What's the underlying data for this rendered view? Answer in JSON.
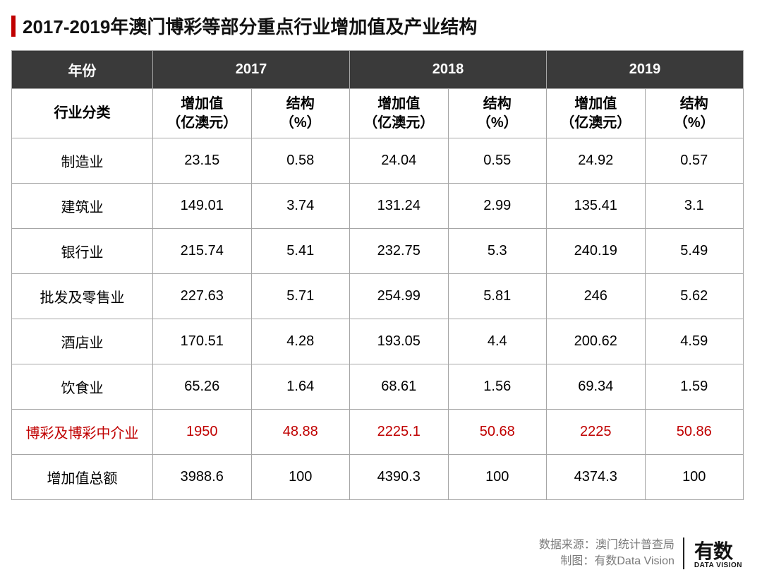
{
  "title": "2017-2019年澳门博彩等部分重点行业增加值及产业结构",
  "accent_color": "#c00000",
  "header_bg": "#3a3a3a",
  "header_fg": "#ffffff",
  "border_color": "#a6a6a6",
  "highlight_color": "#c00000",
  "table": {
    "year_label": "年份",
    "category_label": "行业分类",
    "years": [
      "2017",
      "2018",
      "2019"
    ],
    "subheaders": {
      "value": "增加值\n（亿澳元）",
      "pct": "结构\n（%）"
    },
    "rows": [
      {
        "label": "制造业",
        "cells": [
          "23.15",
          "0.58",
          "24.04",
          "0.55",
          "24.92",
          "0.57"
        ],
        "highlight": false
      },
      {
        "label": "建筑业",
        "cells": [
          "149.01",
          "3.74",
          "131.24",
          "2.99",
          "135.41",
          "3.1"
        ],
        "highlight": false
      },
      {
        "label": "银行业",
        "cells": [
          "215.74",
          "5.41",
          "232.75",
          "5.3",
          "240.19",
          "5.49"
        ],
        "highlight": false
      },
      {
        "label": "批发及零售业",
        "cells": [
          "227.63",
          "5.71",
          "254.99",
          "5.81",
          "246",
          "5.62"
        ],
        "highlight": false
      },
      {
        "label": "酒店业",
        "cells": [
          "170.51",
          "4.28",
          "193.05",
          "4.4",
          "200.62",
          "4.59"
        ],
        "highlight": false
      },
      {
        "label": "饮食业",
        "cells": [
          "65.26",
          "1.64",
          "68.61",
          "1.56",
          "69.34",
          "1.59"
        ],
        "highlight": false
      },
      {
        "label": "博彩及博彩中介业",
        "cells": [
          "1950",
          "48.88",
          "2225.1",
          "50.68",
          "2225",
          "50.86"
        ],
        "highlight": true
      },
      {
        "label": "增加值总额",
        "cells": [
          "3988.6",
          "100",
          "4390.3",
          "100",
          "4374.3",
          "100"
        ],
        "highlight": false
      }
    ]
  },
  "footer": {
    "source_label": "数据来源：",
    "source_value": "澳门统计普查局",
    "chart_label": "制图：",
    "chart_value": "有数Data Vision",
    "logo_cn": "有数",
    "logo_en": "DATA VISION",
    "text_color": "#7a7a7a"
  }
}
